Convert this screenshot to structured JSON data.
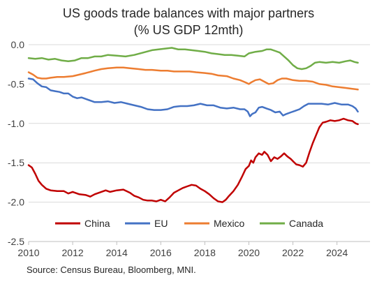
{
  "chart_data": {
    "type": "line",
    "title_line1": "US goods trade balances with major partners",
    "title_line2": "(% US GDP 12mth)",
    "source": "Source: Census Bureau, Bloomberg, MNI.",
    "xlim": [
      2010,
      2025.5
    ],
    "ylim": [
      -2.5,
      0.0
    ],
    "x_ticks": [
      2010,
      2012,
      2014,
      2016,
      2018,
      2020,
      2022,
      2024
    ],
    "x_tick_labels": [
      "2010",
      "2012",
      "2014",
      "2016",
      "2018",
      "2020",
      "2022",
      "2024"
    ],
    "y_ticks": [
      0.0,
      -0.5,
      -1.0,
      -1.5,
      -2.0,
      -2.5
    ],
    "y_tick_labels": [
      "0.0",
      "-0.5",
      "-1.0",
      "-1.5",
      "-2.0",
      "-2.5"
    ],
    "legend_position": "bottom",
    "series": [
      {
        "name": "China",
        "color": "#c00000",
        "points": [
          [
            2010.0,
            -1.53
          ],
          [
            2010.15,
            -1.56
          ],
          [
            2010.3,
            -1.64
          ],
          [
            2010.45,
            -1.73
          ],
          [
            2010.6,
            -1.78
          ],
          [
            2010.8,
            -1.83
          ],
          [
            2011.0,
            -1.85
          ],
          [
            2011.3,
            -1.86
          ],
          [
            2011.6,
            -1.86
          ],
          [
            2011.8,
            -1.89
          ],
          [
            2012.0,
            -1.87
          ],
          [
            2012.3,
            -1.9
          ],
          [
            2012.6,
            -1.91
          ],
          [
            2012.8,
            -1.93
          ],
          [
            2013.0,
            -1.9
          ],
          [
            2013.3,
            -1.87
          ],
          [
            2013.5,
            -1.85
          ],
          [
            2013.7,
            -1.87
          ],
          [
            2014.0,
            -1.85
          ],
          [
            2014.3,
            -1.84
          ],
          [
            2014.6,
            -1.88
          ],
          [
            2014.8,
            -1.92
          ],
          [
            2015.0,
            -1.94
          ],
          [
            2015.2,
            -1.97
          ],
          [
            2015.4,
            -1.98
          ],
          [
            2015.6,
            -1.98
          ],
          [
            2015.8,
            -1.99
          ],
          [
            2016.0,
            -1.97
          ],
          [
            2016.2,
            -1.99
          ],
          [
            2016.4,
            -1.94
          ],
          [
            2016.6,
            -1.88
          ],
          [
            2016.8,
            -1.85
          ],
          [
            2017.0,
            -1.82
          ],
          [
            2017.2,
            -1.8
          ],
          [
            2017.4,
            -1.78
          ],
          [
            2017.6,
            -1.79
          ],
          [
            2017.8,
            -1.83
          ],
          [
            2018.0,
            -1.86
          ],
          [
            2018.2,
            -1.9
          ],
          [
            2018.4,
            -1.95
          ],
          [
            2018.6,
            -1.99
          ],
          [
            2018.8,
            -2.0
          ],
          [
            2018.95,
            -1.97
          ],
          [
            2019.1,
            -1.92
          ],
          [
            2019.3,
            -1.86
          ],
          [
            2019.5,
            -1.78
          ],
          [
            2019.7,
            -1.67
          ],
          [
            2019.85,
            -1.58
          ],
          [
            2020.0,
            -1.54
          ],
          [
            2020.1,
            -1.47
          ],
          [
            2020.2,
            -1.5
          ],
          [
            2020.3,
            -1.43
          ],
          [
            2020.45,
            -1.38
          ],
          [
            2020.6,
            -1.4
          ],
          [
            2020.7,
            -1.36
          ],
          [
            2020.85,
            -1.4
          ],
          [
            2021.0,
            -1.48
          ],
          [
            2021.15,
            -1.43
          ],
          [
            2021.3,
            -1.45
          ],
          [
            2021.45,
            -1.42
          ],
          [
            2021.6,
            -1.38
          ],
          [
            2021.75,
            -1.42
          ],
          [
            2021.9,
            -1.45
          ],
          [
            2022.0,
            -1.48
          ],
          [
            2022.15,
            -1.52
          ],
          [
            2022.3,
            -1.53
          ],
          [
            2022.45,
            -1.55
          ],
          [
            2022.6,
            -1.5
          ],
          [
            2022.75,
            -1.37
          ],
          [
            2022.9,
            -1.25
          ],
          [
            2023.05,
            -1.15
          ],
          [
            2023.2,
            -1.05
          ],
          [
            2023.35,
            -0.99
          ],
          [
            2023.5,
            -0.98
          ],
          [
            2023.7,
            -0.96
          ],
          [
            2023.9,
            -0.97
          ],
          [
            2024.1,
            -0.96
          ],
          [
            2024.3,
            -0.94
          ],
          [
            2024.5,
            -0.96
          ],
          [
            2024.7,
            -0.97
          ],
          [
            2024.85,
            -1.0
          ],
          [
            2024.95,
            -1.01
          ]
        ]
      },
      {
        "name": "EU",
        "color": "#4472c4",
        "points": [
          [
            2010.0,
            -0.43
          ],
          [
            2010.2,
            -0.44
          ],
          [
            2010.4,
            -0.49
          ],
          [
            2010.6,
            -0.53
          ],
          [
            2010.8,
            -0.54
          ],
          [
            2011.0,
            -0.58
          ],
          [
            2011.2,
            -0.59
          ],
          [
            2011.4,
            -0.6
          ],
          [
            2011.6,
            -0.62
          ],
          [
            2011.8,
            -0.62
          ],
          [
            2012.0,
            -0.66
          ],
          [
            2012.2,
            -0.68
          ],
          [
            2012.4,
            -0.67
          ],
          [
            2012.6,
            -0.69
          ],
          [
            2012.8,
            -0.71
          ],
          [
            2013.0,
            -0.73
          ],
          [
            2013.3,
            -0.73
          ],
          [
            2013.6,
            -0.72
          ],
          [
            2013.9,
            -0.74
          ],
          [
            2014.2,
            -0.73
          ],
          [
            2014.5,
            -0.75
          ],
          [
            2014.8,
            -0.77
          ],
          [
            2015.1,
            -0.79
          ],
          [
            2015.4,
            -0.82
          ],
          [
            2015.7,
            -0.83
          ],
          [
            2016.0,
            -0.83
          ],
          [
            2016.3,
            -0.82
          ],
          [
            2016.6,
            -0.79
          ],
          [
            2016.9,
            -0.78
          ],
          [
            2017.2,
            -0.78
          ],
          [
            2017.5,
            -0.77
          ],
          [
            2017.8,
            -0.75
          ],
          [
            2018.1,
            -0.77
          ],
          [
            2018.4,
            -0.77
          ],
          [
            2018.7,
            -0.8
          ],
          [
            2019.0,
            -0.81
          ],
          [
            2019.3,
            -0.8
          ],
          [
            2019.6,
            -0.82
          ],
          [
            2019.8,
            -0.82
          ],
          [
            2019.95,
            -0.85
          ],
          [
            2020.05,
            -0.91
          ],
          [
            2020.15,
            -0.88
          ],
          [
            2020.3,
            -0.86
          ],
          [
            2020.45,
            -0.8
          ],
          [
            2020.6,
            -0.79
          ],
          [
            2020.8,
            -0.81
          ],
          [
            2021.0,
            -0.83
          ],
          [
            2021.2,
            -0.86
          ],
          [
            2021.4,
            -0.85
          ],
          [
            2021.55,
            -0.9
          ],
          [
            2021.7,
            -0.88
          ],
          [
            2021.9,
            -0.86
          ],
          [
            2022.1,
            -0.84
          ],
          [
            2022.3,
            -0.82
          ],
          [
            2022.5,
            -0.78
          ],
          [
            2022.7,
            -0.75
          ],
          [
            2023.0,
            -0.75
          ],
          [
            2023.3,
            -0.75
          ],
          [
            2023.6,
            -0.76
          ],
          [
            2023.9,
            -0.74
          ],
          [
            2024.2,
            -0.76
          ],
          [
            2024.5,
            -0.76
          ],
          [
            2024.7,
            -0.78
          ],
          [
            2024.85,
            -0.81
          ],
          [
            2024.95,
            -0.85
          ]
        ]
      },
      {
        "name": "Mexico",
        "color": "#ed7d31",
        "points": [
          [
            2010.0,
            -0.35
          ],
          [
            2010.2,
            -0.38
          ],
          [
            2010.4,
            -0.42
          ],
          [
            2010.6,
            -0.43
          ],
          [
            2010.8,
            -0.43
          ],
          [
            2011.0,
            -0.42
          ],
          [
            2011.3,
            -0.41
          ],
          [
            2011.6,
            -0.41
          ],
          [
            2012.0,
            -0.4
          ],
          [
            2012.3,
            -0.38
          ],
          [
            2012.6,
            -0.36
          ],
          [
            2013.0,
            -0.33
          ],
          [
            2013.3,
            -0.31
          ],
          [
            2013.6,
            -0.3
          ],
          [
            2014.0,
            -0.29
          ],
          [
            2014.3,
            -0.29
          ],
          [
            2014.6,
            -0.3
          ],
          [
            2015.0,
            -0.31
          ],
          [
            2015.3,
            -0.32
          ],
          [
            2015.6,
            -0.32
          ],
          [
            2016.0,
            -0.33
          ],
          [
            2016.3,
            -0.33
          ],
          [
            2016.6,
            -0.34
          ],
          [
            2017.0,
            -0.34
          ],
          [
            2017.3,
            -0.34
          ],
          [
            2017.6,
            -0.35
          ],
          [
            2018.0,
            -0.36
          ],
          [
            2018.3,
            -0.37
          ],
          [
            2018.6,
            -0.39
          ],
          [
            2019.0,
            -0.4
          ],
          [
            2019.3,
            -0.43
          ],
          [
            2019.6,
            -0.45
          ],
          [
            2019.85,
            -0.48
          ],
          [
            2020.0,
            -0.5
          ],
          [
            2020.1,
            -0.48
          ],
          [
            2020.3,
            -0.45
          ],
          [
            2020.5,
            -0.44
          ],
          [
            2020.7,
            -0.47
          ],
          [
            2020.9,
            -0.5
          ],
          [
            2021.1,
            -0.49
          ],
          [
            2021.3,
            -0.45
          ],
          [
            2021.5,
            -0.43
          ],
          [
            2021.7,
            -0.43
          ],
          [
            2022.0,
            -0.45
          ],
          [
            2022.3,
            -0.46
          ],
          [
            2022.6,
            -0.46
          ],
          [
            2022.9,
            -0.47
          ],
          [
            2023.2,
            -0.5
          ],
          [
            2023.5,
            -0.51
          ],
          [
            2023.8,
            -0.53
          ],
          [
            2024.1,
            -0.54
          ],
          [
            2024.4,
            -0.55
          ],
          [
            2024.7,
            -0.56
          ],
          [
            2024.95,
            -0.57
          ]
        ]
      },
      {
        "name": "Canada",
        "color": "#70ad47",
        "points": [
          [
            2010.0,
            -0.17
          ],
          [
            2010.3,
            -0.18
          ],
          [
            2010.6,
            -0.17
          ],
          [
            2010.9,
            -0.19
          ],
          [
            2011.2,
            -0.18
          ],
          [
            2011.5,
            -0.2
          ],
          [
            2011.8,
            -0.21
          ],
          [
            2012.1,
            -0.2
          ],
          [
            2012.4,
            -0.17
          ],
          [
            2012.7,
            -0.17
          ],
          [
            2013.0,
            -0.15
          ],
          [
            2013.3,
            -0.15
          ],
          [
            2013.6,
            -0.13
          ],
          [
            2014.0,
            -0.14
          ],
          [
            2014.4,
            -0.15
          ],
          [
            2014.8,
            -0.13
          ],
          [
            2015.2,
            -0.1
          ],
          [
            2015.6,
            -0.07
          ],
          [
            2015.9,
            -0.06
          ],
          [
            2016.2,
            -0.05
          ],
          [
            2016.5,
            -0.04
          ],
          [
            2016.8,
            -0.06
          ],
          [
            2017.1,
            -0.06
          ],
          [
            2017.4,
            -0.07
          ],
          [
            2017.7,
            -0.08
          ],
          [
            2018.0,
            -0.09
          ],
          [
            2018.3,
            -0.11
          ],
          [
            2018.6,
            -0.12
          ],
          [
            2018.9,
            -0.13
          ],
          [
            2019.2,
            -0.13
          ],
          [
            2019.5,
            -0.14
          ],
          [
            2019.8,
            -0.15
          ],
          [
            2020.0,
            -0.11
          ],
          [
            2020.3,
            -0.09
          ],
          [
            2020.6,
            -0.08
          ],
          [
            2020.8,
            -0.06
          ],
          [
            2021.0,
            -0.06
          ],
          [
            2021.2,
            -0.08
          ],
          [
            2021.4,
            -0.1
          ],
          [
            2021.6,
            -0.15
          ],
          [
            2021.8,
            -0.2
          ],
          [
            2022.0,
            -0.26
          ],
          [
            2022.2,
            -0.3
          ],
          [
            2022.4,
            -0.31
          ],
          [
            2022.6,
            -0.3
          ],
          [
            2022.8,
            -0.27
          ],
          [
            2023.0,
            -0.23
          ],
          [
            2023.2,
            -0.22
          ],
          [
            2023.5,
            -0.23
          ],
          [
            2023.8,
            -0.22
          ],
          [
            2024.1,
            -0.23
          ],
          [
            2024.4,
            -0.21
          ],
          [
            2024.6,
            -0.2
          ],
          [
            2024.8,
            -0.22
          ],
          [
            2024.95,
            -0.23
          ]
        ]
      }
    ]
  }
}
